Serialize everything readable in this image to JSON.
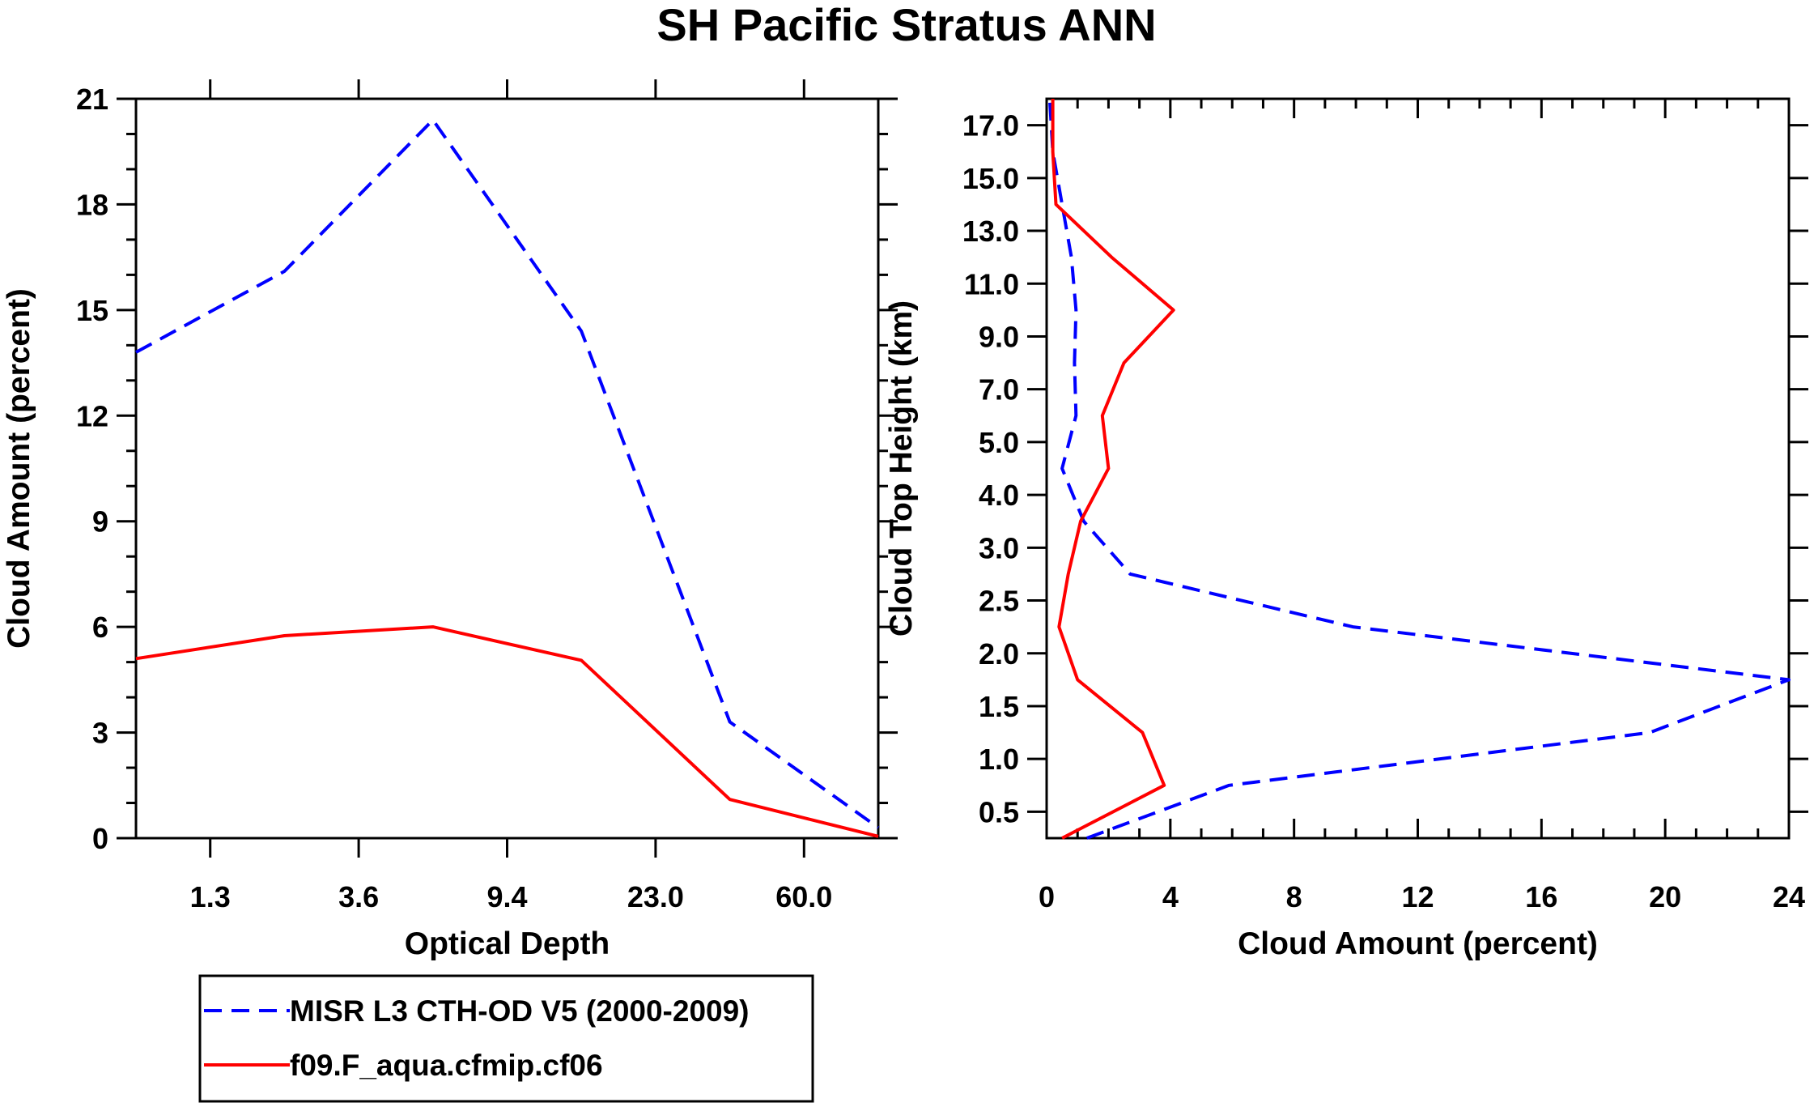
{
  "title": "SH Pacific Stratus ANN",
  "colors": {
    "series1": "#0000ff",
    "series2": "#ff0000",
    "axis": "#000000"
  },
  "legend": [
    {
      "label": "MISR L3 CTH-OD V5 (2000-2009)",
      "color": "#0000ff",
      "style": "dashed"
    },
    {
      "label": "f09.F_aqua.cfmip.cf06",
      "color": "#ff0000",
      "style": "solid"
    }
  ],
  "chart_data": [
    {
      "type": "line",
      "title": "SH Pacific Stratus ANN",
      "xlabel": "Optical Depth",
      "ylabel": "Cloud Amount (percent)",
      "x_bin_index": [
        0,
        1,
        2,
        3,
        4,
        5
      ],
      "x_range": [
        0,
        5
      ],
      "x_ticks": [
        0.5,
        1.5,
        2.5,
        3.5,
        4.5
      ],
      "x_tick_labels": [
        "1.3",
        "3.6",
        "9.4",
        "23.0",
        "60.0"
      ],
      "ylim": [
        0,
        21
      ],
      "y_ticks": [
        0,
        3,
        6,
        9,
        12,
        15,
        18,
        21
      ],
      "y_tick_labels": [
        "0",
        "3",
        "6",
        "9",
        "12",
        "15",
        "18",
        "21"
      ],
      "series": [
        {
          "name": "MISR L3 CTH-OD V5 (2000-2009)",
          "values": [
            13.8,
            16.1,
            20.4,
            14.4,
            3.3,
            0.3
          ]
        },
        {
          "name": "f09.F_aqua.cfmip.cf06",
          "values": [
            5.1,
            5.75,
            6.0,
            5.05,
            1.1,
            0.05
          ]
        }
      ]
    },
    {
      "type": "line",
      "title": "",
      "xlabel": "Cloud Amount (percent)",
      "ylabel": "Cloud Top Height (km)",
      "xlim": [
        0,
        24
      ],
      "x_ticks": [
        0,
        4,
        8,
        12,
        16,
        20,
        24
      ],
      "x_tick_labels": [
        "0",
        "4",
        "8",
        "12",
        "16",
        "20",
        "24"
      ],
      "y_bin_index": [
        0,
        1,
        2,
        3,
        4,
        5,
        6,
        7,
        8,
        9,
        10,
        11,
        12,
        13,
        14
      ],
      "y_range": [
        0,
        14
      ],
      "y_ticks": [
        0.5,
        1.5,
        2.5,
        3.5,
        4.5,
        5.5,
        6.5,
        7.5,
        8.5,
        9.5,
        10.5,
        11.5,
        12.5,
        13.5
      ],
      "y_tick_labels": [
        "0.5",
        "1.0",
        "1.5",
        "2.0",
        "2.5",
        "3.0",
        "4.0",
        "5.0",
        "7.0",
        "9.0",
        "11.0",
        "13.0",
        "15.0",
        "17.0"
      ],
      "series": [
        {
          "name": "MISR L3 CTH-OD V5 (2000-2009)",
          "values": [
            1.3,
            5.9,
            19.5,
            24.0,
            9.9,
            2.7,
            1.2,
            0.5,
            0.95,
            0.9,
            0.95,
            0.8,
            0.5,
            0.2,
            0.1
          ]
        },
        {
          "name": "f09.F_aqua.cfmip.cf06",
          "values": [
            0.5,
            3.8,
            3.1,
            1.0,
            0.4,
            0.7,
            1.1,
            2.0,
            1.8,
            2.5,
            4.1,
            2.1,
            0.3,
            0.2,
            0.2
          ]
        }
      ]
    }
  ]
}
